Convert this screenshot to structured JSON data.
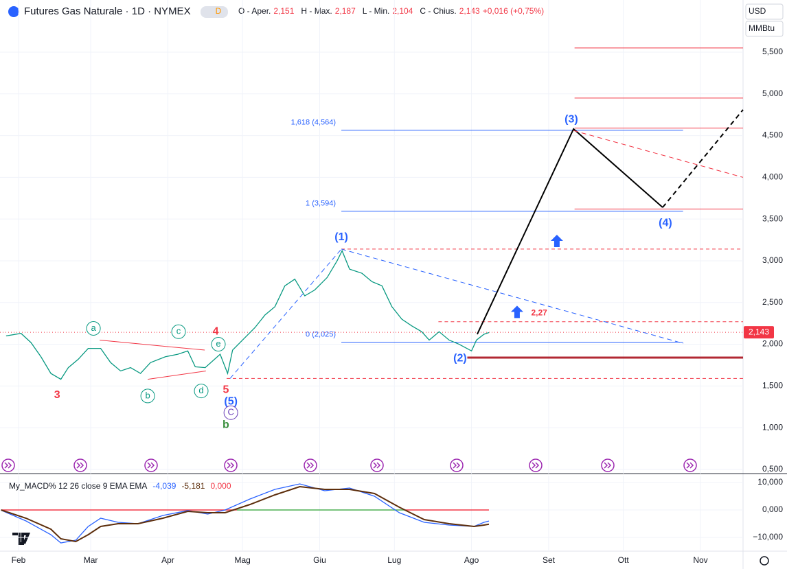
{
  "header": {
    "title": "Futures Gas Naturale · 1D · NYMEX",
    "badge": "D",
    "ohlc": [
      {
        "name": "O - Aper.",
        "value": "2,151"
      },
      {
        "name": "H - Max.",
        "value": "2,187"
      },
      {
        "name": "L - Min.",
        "value": "2,104"
      },
      {
        "name": "C - Chius.",
        "value": "2,143"
      }
    ],
    "change": "+0,016 (+0,75%)",
    "currency": "USD",
    "unit": "MMBtu"
  },
  "chart_data": [
    {
      "type": "line",
      "grid": true,
      "xlim": [
        24.55,
        323.1
      ],
      "xticks": [
        {
          "value": 32,
          "label": "Feb"
        },
        {
          "value": 61,
          "label": "Mar"
        },
        {
          "value": 92,
          "label": "Apr"
        },
        {
          "value": 122,
          "label": "Mag"
        },
        {
          "value": 153,
          "label": "Giu"
        },
        {
          "value": 183,
          "label": "Lug"
        },
        {
          "value": 214,
          "label": "Ago"
        },
        {
          "value": 245,
          "label": "Set"
        },
        {
          "value": 275,
          "label": "Ott"
        },
        {
          "value": 306,
          "label": "Nov"
        }
      ],
      "ylim": [
        0.45,
        6.125
      ],
      "yticks": [
        {
          "value": 0.5,
          "label": "0,500"
        },
        {
          "value": 1,
          "label": "1,000"
        },
        {
          "value": 1.5,
          "label": "1,500"
        },
        {
          "value": 2,
          "label": "2,000"
        },
        {
          "value": 2.5,
          "label": "2,500"
        },
        {
          "value": 3,
          "label": "3,000"
        },
        {
          "value": 3.5,
          "label": "3,500"
        },
        {
          "value": 4,
          "label": "4,000"
        },
        {
          "value": 4.5,
          "label": "4,500"
        },
        {
          "value": 5,
          "label": "5,000"
        },
        {
          "value": 5.5,
          "label": "5,500"
        }
      ],
      "x": [
        27,
        33,
        37,
        41,
        45,
        49,
        52,
        56,
        60,
        65,
        69,
        73,
        77,
        81,
        85,
        91,
        96,
        100,
        103,
        107,
        113,
        116,
        118,
        122,
        127,
        131,
        135,
        139,
        143,
        147,
        151,
        156,
        160,
        162,
        165,
        170,
        174,
        178,
        182,
        186,
        190,
        194,
        197,
        201,
        205,
        209,
        214,
        216,
        219,
        221
      ],
      "series": [
        {
          "color": "#089981",
          "values": [
            2.1,
            2.13,
            2.02,
            1.85,
            1.65,
            1.58,
            1.72,
            1.82,
            1.95,
            1.95,
            1.78,
            1.68,
            1.72,
            1.65,
            1.78,
            1.85,
            1.88,
            1.92,
            1.73,
            1.72,
            1.88,
            1.65,
            1.93,
            2.05,
            2.2,
            2.35,
            2.45,
            2.7,
            2.78,
            2.58,
            2.65,
            2.8,
            3.0,
            3.12,
            2.9,
            2.85,
            2.75,
            2.7,
            2.45,
            2.3,
            2.22,
            2.15,
            2.05,
            2.15,
            2.05,
            2.0,
            1.92,
            2.05,
            2.12,
            2.14
          ]
        }
      ],
      "price_line": {
        "value": 2.143,
        "label": "2,143",
        "color": "#f23645"
      },
      "fib_range": [
        161.7,
        299
      ],
      "fib_levels": [
        {
          "value": 4.564,
          "label": "1,618 (4,564)"
        },
        {
          "value": 3.594,
          "label": "1 (3,594)"
        },
        {
          "value": 2.025,
          "label": "0 (2,025)"
        }
      ],
      "red_levels": [
        {
          "value": 5.55,
          "from": 255.4
        },
        {
          "value": 4.95,
          "from": 255.4
        },
        {
          "value": 4.59,
          "from": 255.4
        },
        {
          "value": 3.62,
          "from": 255.4
        }
      ],
      "dashed_levels": [
        {
          "value": 3.14,
          "from": 161.7
        },
        {
          "value": 2.27,
          "from": 200.7
        },
        {
          "value": 1.59,
          "from": 115.6
        }
      ],
      "support": {
        "value": 1.84,
        "from": 212.3
      },
      "lines": [
        {
          "color": "#000000",
          "dash": false,
          "x": [
            216.3,
            255,
            290.8
          ],
          "y": [
            2.12,
            4.58,
            3.64
          ]
        },
        {
          "color": "#000000",
          "dash": true,
          "x": [
            290.8,
            323.1
          ],
          "y": [
            3.64,
            4.81
          ]
        },
        {
          "color": "#f23645",
          "dash": true,
          "x": [
            255,
            323.1
          ],
          "y": [
            4.56,
            4.0
          ]
        },
        {
          "color": "#2962ff",
          "dash": true,
          "x": [
            161.7,
            299.1
          ],
          "y": [
            3.14,
            2.01
          ]
        },
        {
          "color": "#2962ff",
          "dash": true,
          "x": [
            117,
            161.7
          ],
          "y": [
            1.59,
            3.14
          ]
        },
        {
          "color": "#f23645",
          "dash": false,
          "x": [
            64.6,
            106.8
          ],
          "y": [
            2.05,
            1.93
          ]
        },
        {
          "color": "#f23645",
          "dash": false,
          "x": [
            83.9,
            107.3
          ],
          "y": [
            1.58,
            1.68
          ]
        }
      ],
      "arrows": [
        {
          "x": 248.3,
          "y": 3.23
        },
        {
          "x": 232.3,
          "y": 2.38
        }
      ],
      "annotations": [
        {
          "text": "3",
          "x": 47.5,
          "y": 1.39,
          "color": "#f23645",
          "circled": false
        },
        {
          "text": "a",
          "x": 62.1,
          "y": 2.19,
          "color": "#089981",
          "circled": true
        },
        {
          "text": "b",
          "x": 83.9,
          "y": 1.38,
          "color": "#089981",
          "circled": true
        },
        {
          "text": "c",
          "x": 96.3,
          "y": 2.15,
          "color": "#089981",
          "circled": true
        },
        {
          "text": "d",
          "x": 105.4,
          "y": 1.44,
          "color": "#089981",
          "circled": true
        },
        {
          "text": "e",
          "x": 112.3,
          "y": 2.0,
          "color": "#089981",
          "circled": true
        },
        {
          "text": "4",
          "x": 111.2,
          "y": 2.15,
          "color": "#f23645",
          "circled": false
        },
        {
          "text": "5",
          "x": 115.3,
          "y": 1.45,
          "color": "#f23645",
          "circled": false
        },
        {
          "text": "(5)",
          "x": 117.3,
          "y": 1.31,
          "color": "#2962ff",
          "circled": false
        },
        {
          "text": "C",
          "x": 117.3,
          "y": 1.18,
          "color": "#673ab7",
          "circled": true
        },
        {
          "text": "b",
          "x": 115.3,
          "y": 1.03,
          "color": "#388e3c",
          "circled": false
        },
        {
          "text": "(1)",
          "x": 161.7,
          "y": 3.28,
          "color": "#2962ff",
          "circled": false
        },
        {
          "text": "(2)",
          "x": 209.4,
          "y": 1.83,
          "color": "#2962ff",
          "circled": false
        },
        {
          "text": "(3)",
          "x": 254.1,
          "y": 4.69,
          "color": "#2962ff",
          "circled": false
        },
        {
          "text": "(4)",
          "x": 291.9,
          "y": 3.45,
          "color": "#2962ff",
          "circled": false
        },
        {
          "text": "2,27",
          "x": 241.2,
          "y": 2.37,
          "color": "#f23645",
          "circled": false
        }
      ]
    },
    {
      "type": "line",
      "title": "My_MACD% 12 26 close 9 EMA EMA",
      "legend_values": [
        {
          "text": "-4,039",
          "color": "#2962ff"
        },
        {
          "text": "-5,181",
          "color": "#5d2e0c"
        },
        {
          "text": "0,000",
          "color": "#f23645"
        }
      ],
      "grid": true,
      "ylim": [
        -15000,
        12500
      ],
      "yticks": [
        {
          "value": -10000,
          "label": "−10,000"
        },
        {
          "value": 0,
          "label": "0,000"
        },
        {
          "value": 10000,
          "label": "10,000"
        }
      ],
      "x": [
        25,
        35,
        45,
        49,
        55,
        60,
        65,
        72,
        80,
        90,
        100,
        108,
        115,
        125,
        135,
        145,
        155,
        165,
        175,
        185,
        195,
        205,
        215,
        219,
        221
      ],
      "series": [
        {
          "color": "#2962ff",
          "values": [
            -100,
            -4000,
            -9000,
            -12000,
            -11000,
            -6000,
            -3000,
            -4500,
            -5000,
            -2000,
            -200,
            -1500,
            0,
            4000,
            7500,
            9500,
            7000,
            8000,
            5000,
            -1000,
            -4500,
            -5500,
            -6000,
            -4500,
            -4039
          ]
        },
        {
          "color": "#5d2e0c",
          "values": [
            0,
            -3000,
            -7000,
            -10500,
            -11500,
            -9000,
            -6000,
            -5000,
            -5000,
            -3000,
            -500,
            -1000,
            -1000,
            2000,
            5500,
            8500,
            7500,
            7500,
            6000,
            1000,
            -3500,
            -5000,
            -6000,
            -5500,
            -5181
          ]
        }
      ],
      "zero_segments": [
        {
          "from": 25,
          "to": 119.7,
          "color": "#f23645"
        },
        {
          "from": 119.7,
          "to": 187.4,
          "color": "#4caf50"
        },
        {
          "from": 187.4,
          "to": 221,
          "color": "#f23645"
        }
      ]
    }
  ]
}
